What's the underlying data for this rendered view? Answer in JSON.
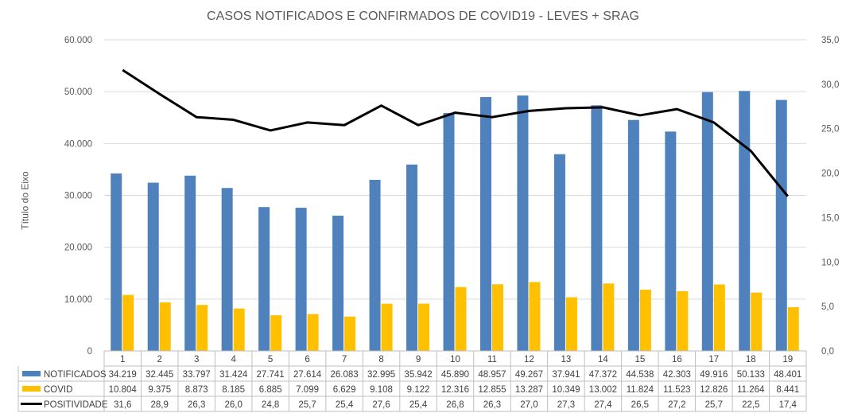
{
  "chart_data": {
    "type": "bar",
    "title": "CASOS NOTIFICADOS E CONFIRMADOS DE COVID19 - LEVES + SRAG",
    "ylabel": "Título do Eixo",
    "categories": [
      "1",
      "2",
      "3",
      "4",
      "5",
      "6",
      "7",
      "8",
      "9",
      "10",
      "11",
      "12",
      "13",
      "14",
      "15",
      "16",
      "17",
      "18",
      "19"
    ],
    "ylim": [
      0,
      60000
    ],
    "y_ticks": [
      "0",
      "10.000",
      "20.000",
      "30.000",
      "40.000",
      "50.000",
      "60.000"
    ],
    "y2lim": [
      0,
      35
    ],
    "y2_ticks": [
      "0,0",
      "5,0",
      "10,0",
      "15,0",
      "20,0",
      "25,0",
      "30,0",
      "35,0"
    ],
    "series": [
      {
        "name": "NOTIFICADOS",
        "type": "bar",
        "axis": "left",
        "color": "#4F81BD",
        "values": [
          34219,
          32445,
          33797,
          31424,
          27741,
          27614,
          26083,
          32995,
          35942,
          45890,
          48957,
          49267,
          37941,
          47372,
          44538,
          42303,
          49916,
          50133,
          48401
        ],
        "labels": [
          "34.219",
          "32.445",
          "33.797",
          "31.424",
          "27.741",
          "27.614",
          "26.083",
          "32.995",
          "35.942",
          "45.890",
          "48.957",
          "49.267",
          "37.941",
          "47.372",
          "44.538",
          "42.303",
          "49.916",
          "50.133",
          "48.401"
        ]
      },
      {
        "name": "COVID",
        "type": "bar",
        "axis": "left",
        "color": "#FFC000",
        "values": [
          10804,
          9375,
          8873,
          8185,
          6885,
          7099,
          6629,
          9108,
          9122,
          12316,
          12855,
          13287,
          10349,
          13002,
          11824,
          11523,
          12826,
          11264,
          8441
        ],
        "labels": [
          "10.804",
          "9.375",
          "8.873",
          "8.185",
          "6.885",
          "7.099",
          "6.629",
          "9.108",
          "9.122",
          "12.316",
          "12.855",
          "13.287",
          "10.349",
          "13.002",
          "11.824",
          "11.523",
          "12.826",
          "11.264",
          "8.441"
        ]
      },
      {
        "name": "POSITIVIDADE",
        "type": "line",
        "axis": "right",
        "color": "#000000",
        "values": [
          31.6,
          28.9,
          26.3,
          26.0,
          24.8,
          25.7,
          25.4,
          27.6,
          25.4,
          26.8,
          26.3,
          27.0,
          27.3,
          27.4,
          26.5,
          27.2,
          25.7,
          22.5,
          17.4
        ],
        "labels": [
          "31,6",
          "28,9",
          "26,3",
          "26,0",
          "24,8",
          "25,7",
          "25,4",
          "27,6",
          "25,4",
          "26,8",
          "26,3",
          "27,0",
          "27,3",
          "27,4",
          "26,5",
          "27,2",
          "25,7",
          "22,5",
          "17,4"
        ]
      }
    ],
    "legend": "bottom data table"
  }
}
